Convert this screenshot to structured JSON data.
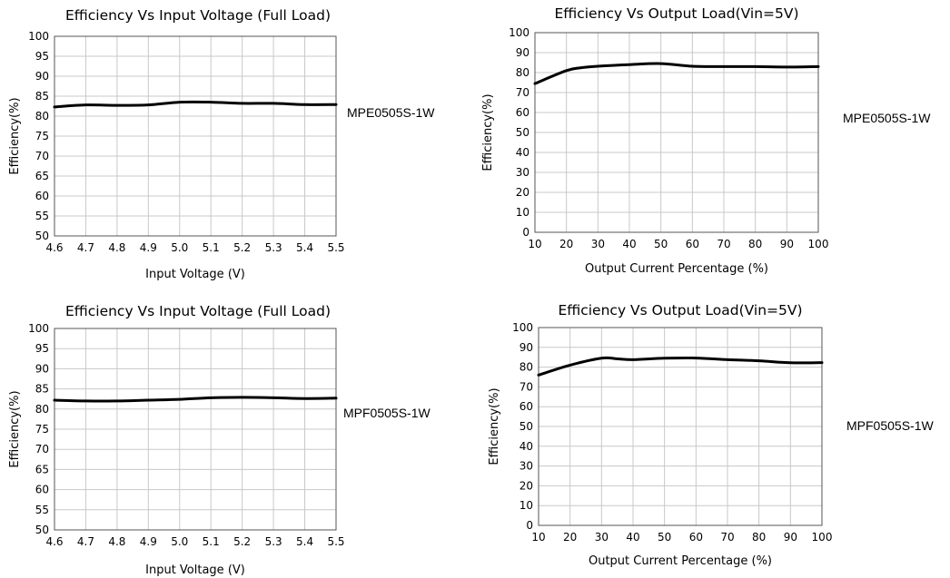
{
  "chart_data": [
    {
      "type": "line",
      "title": "Efficiency Vs Input Voltage (Full Load)",
      "xlabel": "Input Voltage (V)",
      "ylabel": "Efficiency(%)",
      "model": "MPE0505S-1W",
      "xlim": [
        4.6,
        5.5
      ],
      "ylim": [
        50,
        100
      ],
      "xticks": [
        "4.6",
        "4.7",
        "4.8",
        "4.9",
        "5.0",
        "5.1",
        "5.2",
        "5.3",
        "5.4",
        "5.5"
      ],
      "yticks": [
        "50",
        "55",
        "60",
        "65",
        "70",
        "75",
        "80",
        "85",
        "90",
        "95",
        "100"
      ],
      "grid": true,
      "series": [
        {
          "x": [
            4.6,
            4.7,
            4.8,
            4.9,
            5.0,
            5.1,
            5.2,
            5.3,
            5.4,
            5.5
          ],
          "y": [
            82.3,
            82.8,
            82.7,
            82.8,
            83.5,
            83.5,
            83.2,
            83.2,
            82.9,
            82.9
          ]
        }
      ]
    },
    {
      "type": "line",
      "title": "Efficiency Vs Output Load(Vin=5V)",
      "xlabel": "Output Current Percentage (%)",
      "ylabel": "Efficiency(%)",
      "model": "MPE0505S-1W",
      "xlim": [
        10,
        100
      ],
      "ylim": [
        0,
        100
      ],
      "xticks": [
        "10",
        "20",
        "30",
        "40",
        "50",
        "60",
        "70",
        "80",
        "90",
        "100"
      ],
      "yticks": [
        "0",
        "10",
        "20",
        "30",
        "40",
        "50",
        "60",
        "70",
        "80",
        "90",
        "100"
      ],
      "grid": true,
      "series": [
        {
          "x": [
            10,
            20,
            25,
            30,
            40,
            50,
            60,
            70,
            80,
            90,
            100
          ],
          "y": [
            74.5,
            81,
            82.5,
            83.2,
            84,
            84.5,
            83.2,
            83,
            83,
            82.8,
            83
          ]
        }
      ]
    },
    {
      "type": "line",
      "title": "Efficiency Vs Input Voltage (Full Load)",
      "xlabel": "Input Voltage (V)",
      "ylabel": "Efficiency(%)",
      "model": "MPF0505S-1W",
      "xlim": [
        4.6,
        5.5
      ],
      "ylim": [
        50,
        100
      ],
      "xticks": [
        "4.6",
        "4.7",
        "4.8",
        "4.9",
        "5.0",
        "5.1",
        "5.2",
        "5.3",
        "5.4",
        "5.5"
      ],
      "yticks": [
        "50",
        "55",
        "60",
        "65",
        "70",
        "75",
        "80",
        "85",
        "90",
        "95",
        "100"
      ],
      "grid": true,
      "series": [
        {
          "x": [
            4.6,
            4.7,
            4.8,
            4.9,
            5.0,
            5.1,
            5.2,
            5.3,
            5.4,
            5.5
          ],
          "y": [
            82.2,
            82.0,
            82.0,
            82.2,
            82.4,
            82.8,
            82.9,
            82.8,
            82.6,
            82.7
          ]
        }
      ]
    },
    {
      "type": "line",
      "title": "Efficiency Vs Output Load(Vin=5V)",
      "xlabel": "Output Current Percentage (%)",
      "ylabel": "Efficiency(%)",
      "model": "MPF0505S-1W",
      "xlim": [
        10,
        100
      ],
      "ylim": [
        0,
        100
      ],
      "xticks": [
        "10",
        "20",
        "30",
        "40",
        "50",
        "60",
        "70",
        "80",
        "90",
        "100"
      ],
      "yticks": [
        "0",
        "10",
        "20",
        "30",
        "40",
        "50",
        "60",
        "70",
        "80",
        "90",
        "100"
      ],
      "grid": true,
      "series": [
        {
          "x": [
            10,
            20,
            30,
            35,
            40,
            50,
            60,
            70,
            80,
            90,
            100
          ],
          "y": [
            76,
            81,
            84.5,
            84.2,
            83.8,
            84.5,
            84.6,
            83.8,
            83.2,
            82.2,
            82.3
          ]
        }
      ]
    }
  ]
}
